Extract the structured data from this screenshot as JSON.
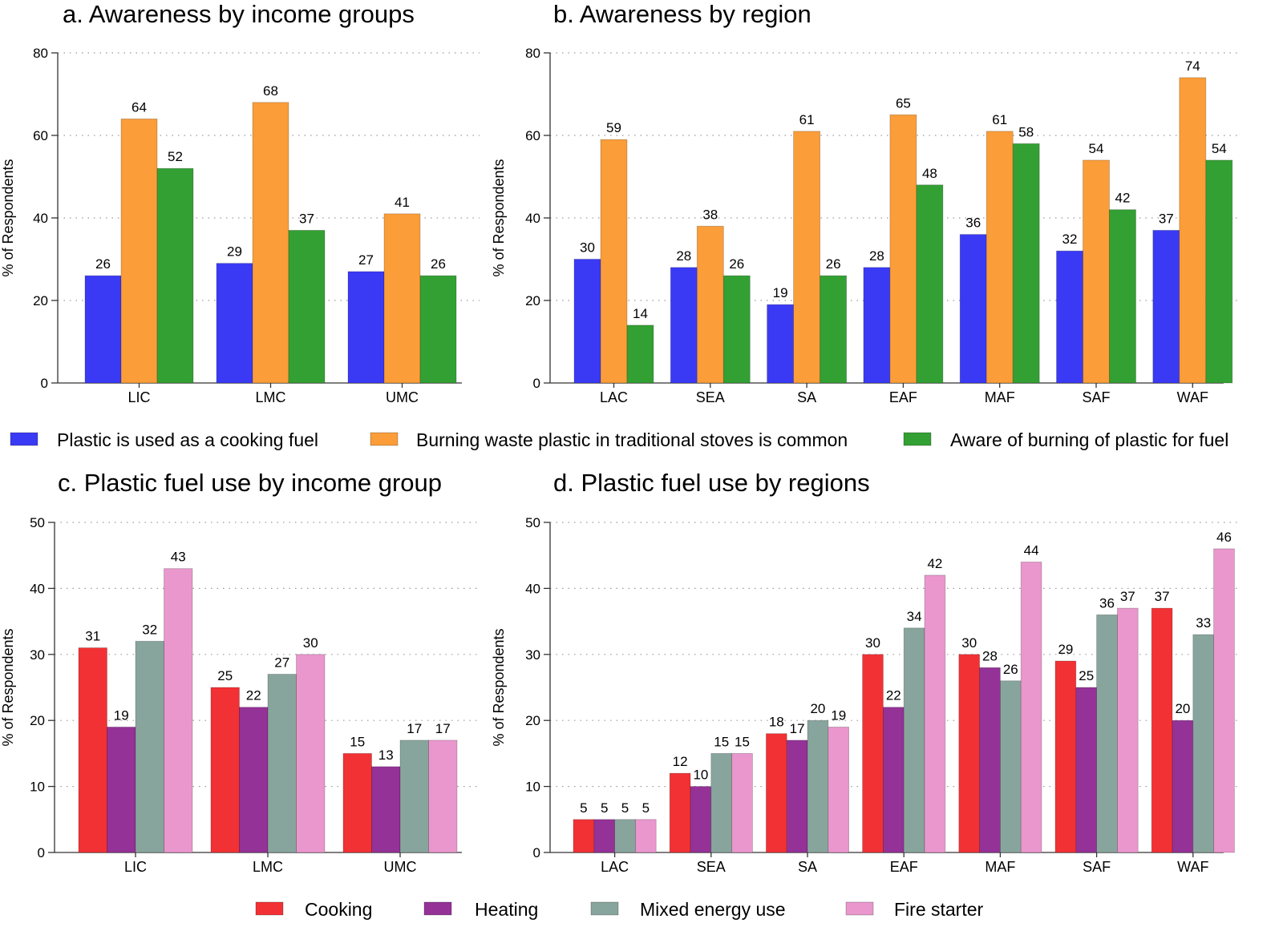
{
  "colors": {
    "awareness": [
      "#3a3af5",
      "#fb9d38",
      "#33a033"
    ],
    "use": [
      "#f23134",
      "#943297",
      "#88a59d",
      "#e997cc"
    ]
  },
  "legend_top": [
    "Plastic is used as a cooking fuel",
    "Burning waste plastic in traditional stoves is common",
    "Aware of burning of plastic for fuel"
  ],
  "legend_bottom": [
    "Cooking",
    "Heating",
    "Mixed energy use",
    "Fire starter"
  ],
  "chart_data": [
    {
      "type": "bar",
      "title": "a. Awareness by  income groups",
      "ylabel": "% of Respondents",
      "ylim": [
        0,
        80
      ],
      "yticks": [
        0,
        20,
        40,
        60,
        80
      ],
      "grid": true,
      "categories": [
        "LIC",
        "LMC",
        "UMC"
      ],
      "series": [
        {
          "name": "Plastic is used as a cooking fuel",
          "values": [
            26,
            29,
            27
          ],
          "labels": [
            "26",
            "29",
            "27"
          ]
        },
        {
          "name": "Burning waste plastic in traditional stoves is common",
          "values": [
            64,
            68,
            41
          ],
          "labels": [
            "64",
            "68",
            "41"
          ]
        },
        {
          "name": "Aware of burning of plastic for fuel",
          "values": [
            52,
            37,
            26
          ],
          "labels": [
            "52",
            "37",
            "26"
          ]
        }
      ]
    },
    {
      "type": "bar",
      "title": "b. Awareness by region",
      "ylabel": "% of Respondents",
      "ylim": [
        0,
        80
      ],
      "yticks": [
        0,
        20,
        40,
        60,
        80
      ],
      "grid": true,
      "categories": [
        "LAC",
        "SEA",
        "SA",
        "EAF",
        "MAF",
        "SAF",
        "WAF"
      ],
      "series": [
        {
          "name": "Plastic is used as a cooking fuel",
          "values": [
            30,
            28,
            19,
            28,
            36,
            32,
            37
          ],
          "labels": [
            "30",
            "28",
            "19",
            "28",
            "36",
            "32",
            "37"
          ]
        },
        {
          "name": "Burning waste plastic in traditional stoves is common",
          "values": [
            59,
            38,
            61,
            65,
            61,
            54,
            74
          ],
          "labels": [
            "59",
            "38",
            "61",
            "65",
            "61",
            "54",
            "74"
          ]
        },
        {
          "name": "Aware of burning of plastic for fuel",
          "values": [
            14,
            26,
            26,
            48,
            58,
            42,
            54
          ],
          "labels": [
            "14",
            "26",
            "26",
            "48",
            "58",
            "42",
            "54"
          ]
        }
      ]
    },
    {
      "type": "bar",
      "title": "c. Plastic fuel use by  income group",
      "ylabel": "% of Respondents",
      "ylim": [
        0,
        50
      ],
      "yticks": [
        0,
        10,
        20,
        30,
        40,
        50
      ],
      "grid": true,
      "categories": [
        "LIC",
        "LMC",
        "UMC"
      ],
      "series": [
        {
          "name": "Cooking",
          "values": [
            31,
            25,
            15
          ],
          "labels": [
            "31",
            "25",
            "15"
          ]
        },
        {
          "name": "Heating",
          "values": [
            19,
            22,
            13
          ],
          "labels": [
            "19",
            "22",
            "13"
          ]
        },
        {
          "name": "Mixed energy use",
          "values": [
            32,
            27,
            17
          ],
          "labels": [
            "32",
            "27",
            "17"
          ]
        },
        {
          "name": "Fire starter",
          "values": [
            43,
            30,
            17
          ],
          "labels": [
            "43",
            "30",
            "17"
          ]
        }
      ]
    },
    {
      "type": "bar",
      "title": "d. Plastic fuel use by regions",
      "ylabel": "% of Respondents",
      "ylim": [
        0,
        50
      ],
      "yticks": [
        0,
        10,
        20,
        30,
        40,
        50
      ],
      "grid": true,
      "categories": [
        "LAC",
        "SEA",
        "SA",
        "EAF",
        "MAF",
        "SAF",
        "WAF"
      ],
      "series": [
        {
          "name": "Cooking",
          "values": [
            5,
            12,
            18,
            30,
            30,
            29,
            37
          ],
          "labels": [
            "5",
            "12",
            "18",
            "30",
            "30",
            "29",
            "37"
          ]
        },
        {
          "name": "Heating",
          "values": [
            5,
            10,
            17,
            22,
            28,
            25,
            20
          ],
          "labels": [
            "5",
            "10",
            "17",
            "22",
            "28",
            "25",
            "20"
          ]
        },
        {
          "name": "Mixed energy use",
          "values": [
            5,
            15,
            20,
            34,
            26,
            36,
            33
          ],
          "labels": [
            "5",
            "15",
            "20",
            "34",
            "26",
            "36",
            "33"
          ]
        },
        {
          "name": "Fire starter",
          "values": [
            5,
            15,
            19,
            42,
            44,
            37,
            46
          ],
          "labels": [
            "5",
            "15",
            "19",
            "42",
            "44",
            "37",
            "46"
          ]
        }
      ]
    }
  ]
}
